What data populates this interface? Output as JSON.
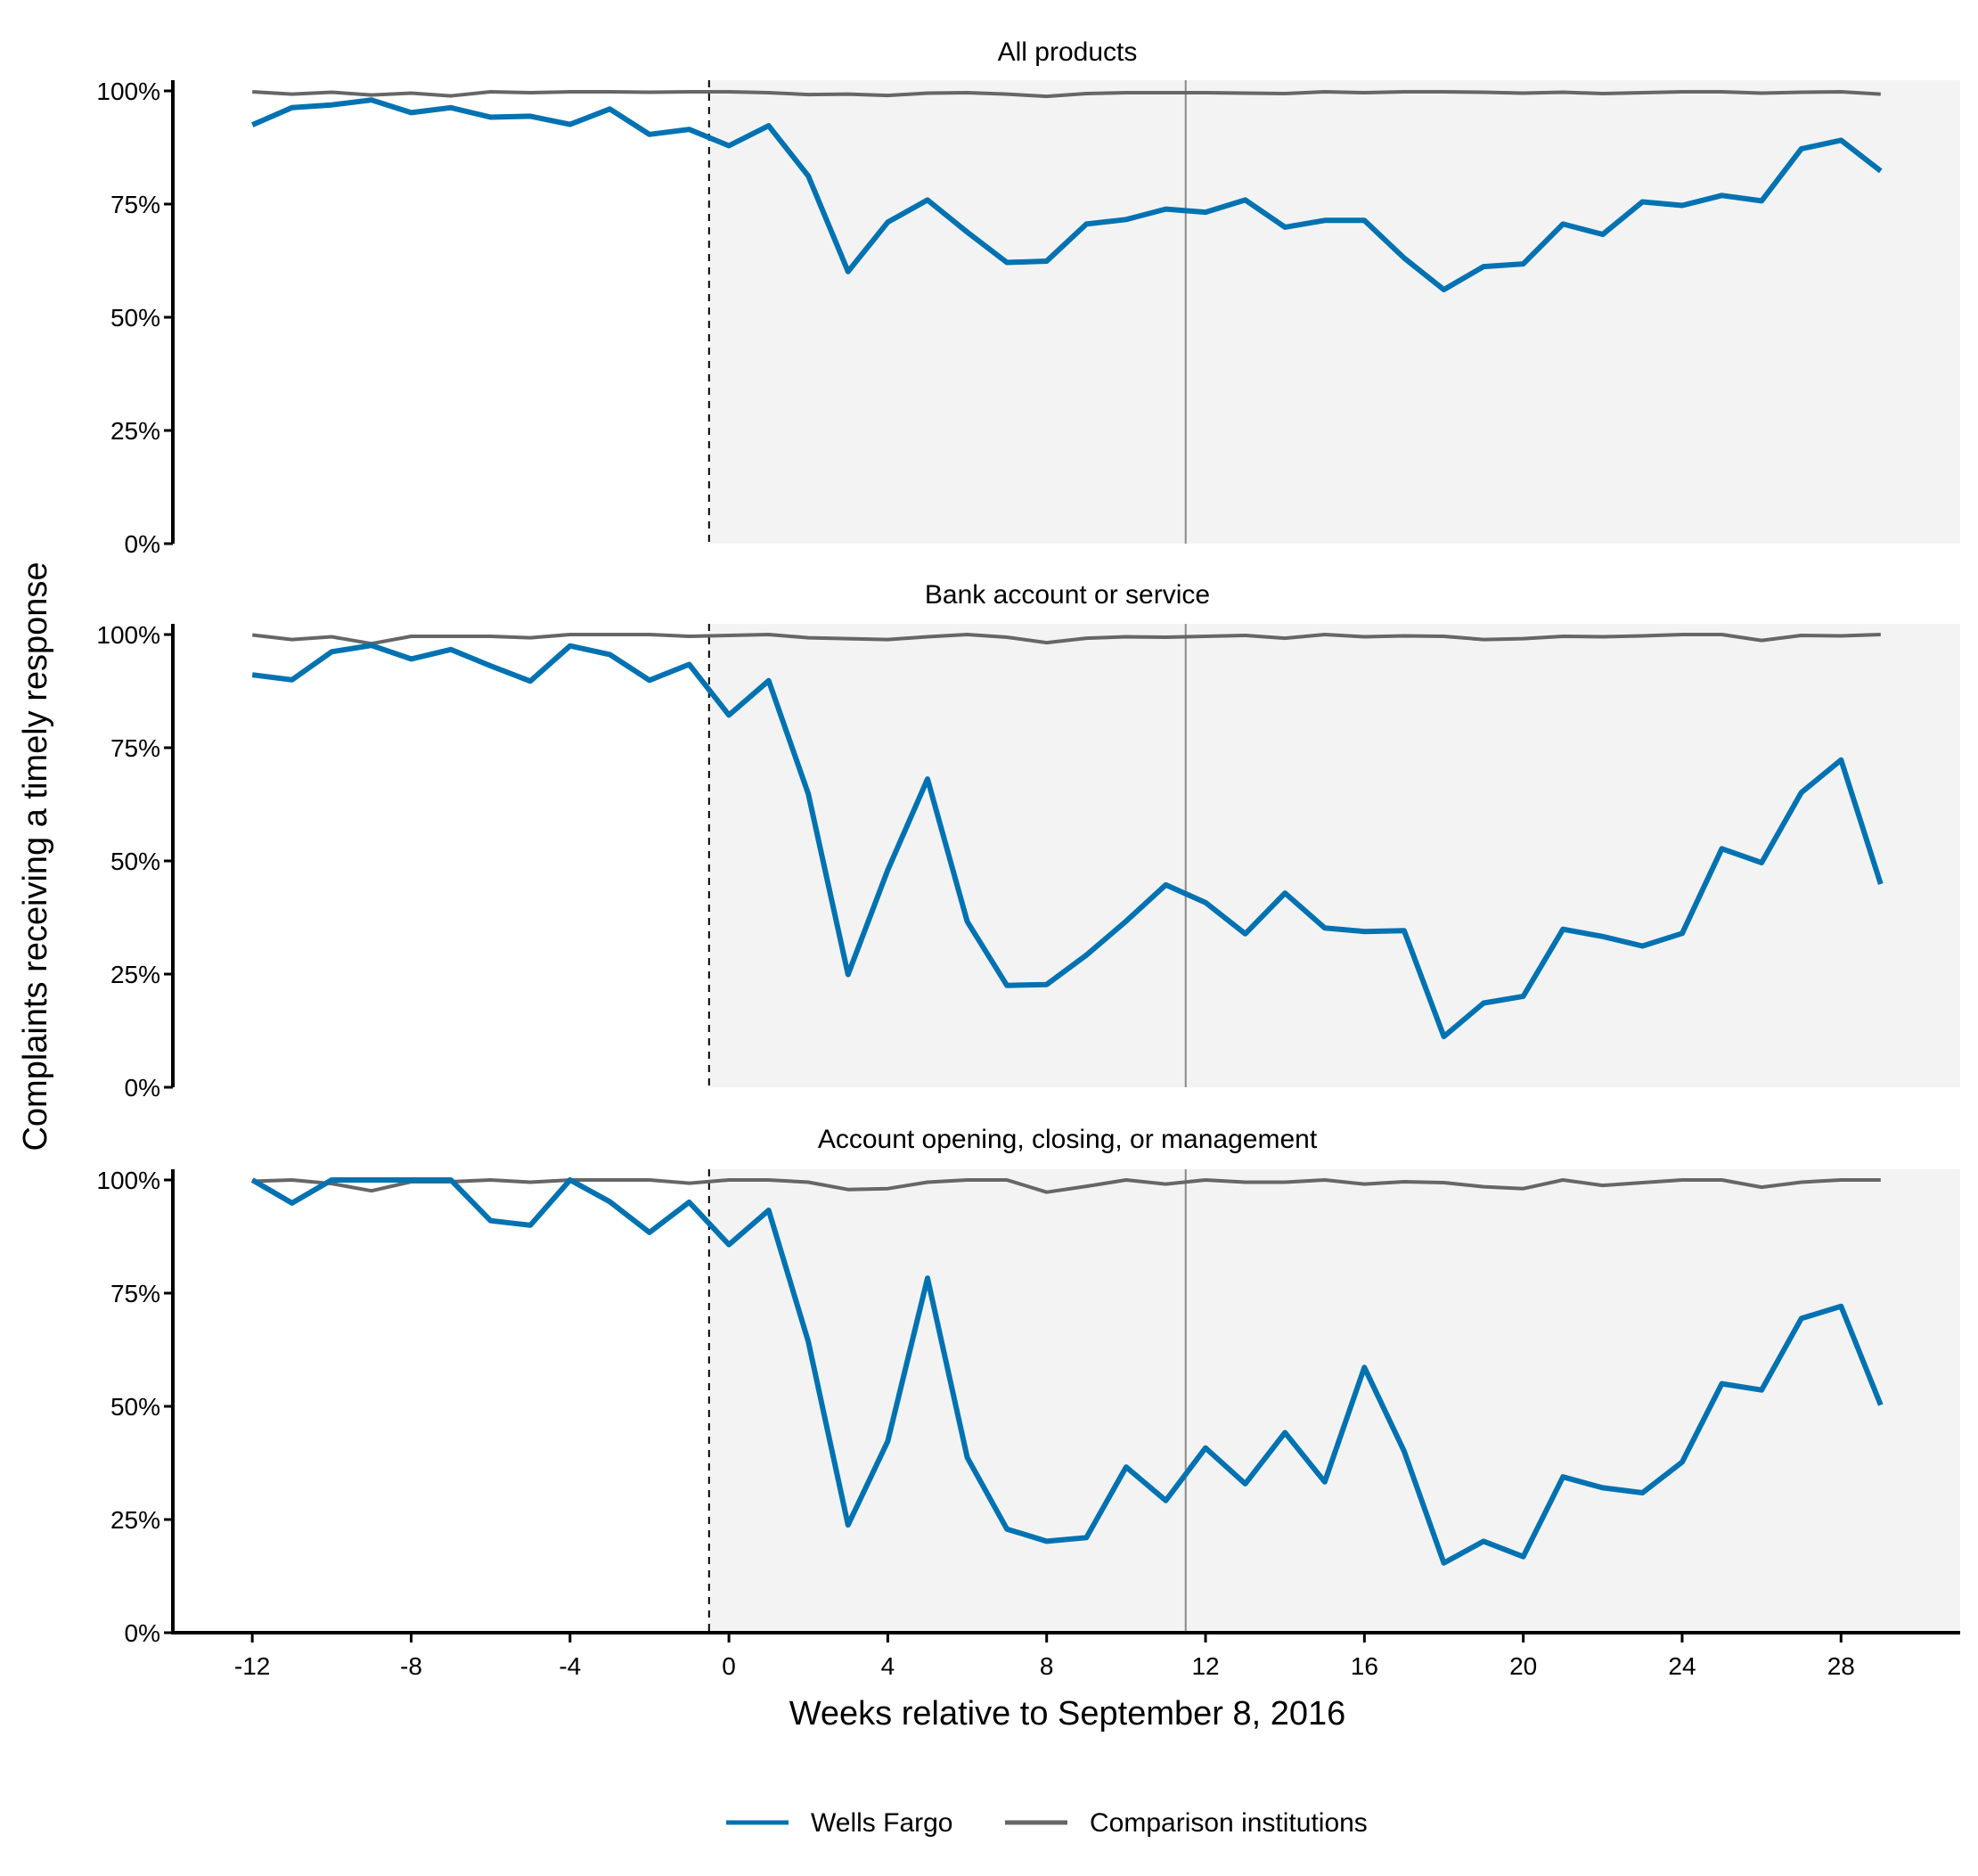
{
  "chart_data": {
    "type": "line",
    "xlabel": "Weeks relative to September 8, 2016",
    "ylabel": "Complaints receiving a timely response",
    "x_ticks": [
      -12,
      -8,
      -4,
      0,
      4,
      8,
      12,
      16,
      20,
      24,
      28
    ],
    "x_tick_labels": [
      "-12",
      "-8",
      "-4",
      "0",
      "4",
      "8",
      "12",
      "16",
      "20",
      "24",
      "28"
    ],
    "xlim": [
      -14,
      31
    ],
    "ylim": [
      0,
      100
    ],
    "y_ticks": [
      0,
      25,
      50,
      75,
      100
    ],
    "y_tick_labels": [
      "0%",
      "25%",
      "50%",
      "75%",
      "100%"
    ],
    "x": [
      -12,
      -11,
      -10,
      -9,
      -8,
      -7,
      -6,
      -5,
      -4,
      -3,
      -2,
      -1,
      0,
      1,
      2,
      3,
      4,
      5,
      6,
      7,
      8,
      9,
      10,
      11,
      12,
      13,
      14,
      15,
      16,
      17,
      18,
      19,
      20,
      21,
      22,
      23,
      24,
      25,
      26,
      27,
      28,
      29
    ],
    "shaded_region": {
      "from": -0.5,
      "to": 31,
      "color": "#f3f3f3"
    },
    "dashed_vline": -0.5,
    "solid_vline": 11.5,
    "grid": false,
    "legend_position": "bottom",
    "legend": [
      {
        "name": "Wells Fargo",
        "color": "#0072b2"
      },
      {
        "name": "Comparison institutions",
        "color": "#666666"
      }
    ],
    "panels": [
      {
        "title": "All products",
        "series": [
          {
            "name": "Wells Fargo",
            "color": "#0072b2",
            "values": [
              92.5,
              96.3,
              96.9,
              98.0,
              95.2,
              96.3,
              94.2,
              94.4,
              92.6,
              96.0,
              90.4,
              91.5,
              87.9,
              92.3,
              81.2,
              60.1,
              71.0,
              75.9,
              68.8,
              62.1,
              62.4,
              70.6,
              71.6,
              73.9,
              73.2,
              75.9,
              69.9,
              71.4,
              71.4,
              63.1,
              56.1,
              61.2,
              61.8,
              70.6,
              68.3,
              75.5,
              74.7,
              76.9,
              75.7,
              87.2,
              89.1,
              82.3
            ]
          },
          {
            "name": "Comparison institutions",
            "color": "#666666",
            "values": [
              99.8,
              99.3,
              99.7,
              99.1,
              99.5,
              98.9,
              99.8,
              99.6,
              99.8,
              99.8,
              99.7,
              99.8,
              99.8,
              99.6,
              99.2,
              99.3,
              99.0,
              99.5,
              99.6,
              99.3,
              98.8,
              99.4,
              99.6,
              99.6,
              99.6,
              99.5,
              99.4,
              99.8,
              99.6,
              99.8,
              99.8,
              99.7,
              99.5,
              99.7,
              99.4,
              99.6,
              99.8,
              99.8,
              99.5,
              99.7,
              99.8,
              99.3
            ]
          }
        ]
      },
      {
        "title": "Bank account or service",
        "series": [
          {
            "name": "Wells Fargo",
            "color": "#0072b2",
            "values": [
              91.1,
              90.0,
              96.2,
              97.6,
              94.6,
              96.7,
              93.1,
              89.7,
              97.5,
              95.6,
              89.9,
              93.4,
              82.2,
              89.8,
              64.8,
              24.9,
              48.0,
              68.1,
              36.6,
              22.5,
              22.7,
              29.2,
              36.7,
              44.7,
              40.8,
              33.9,
              42.9,
              35.2,
              34.4,
              34.6,
              11.2,
              18.6,
              20.1,
              34.9,
              33.3,
              31.2,
              34.0,
              52.7,
              49.6,
              65.1,
              72.3,
              44.9
            ]
          },
          {
            "name": "Comparison institutions",
            "color": "#666666",
            "values": [
              99.9,
              98.9,
              99.5,
              98.0,
              99.6,
              99.6,
              99.6,
              99.3,
              100.0,
              100.0,
              100.0,
              99.6,
              99.8,
              100.0,
              99.3,
              99.1,
              98.9,
              99.5,
              100.0,
              99.4,
              98.2,
              99.2,
              99.5,
              99.4,
              99.6,
              99.8,
              99.2,
              100.0,
              99.5,
              99.7,
              99.6,
              98.9,
              99.1,
              99.6,
              99.5,
              99.7,
              100.0,
              100.0,
              98.7,
              99.8,
              99.7,
              100.0
            ]
          }
        ]
      },
      {
        "title": "Account opening, closing, or management",
        "series": [
          {
            "name": "Wells Fargo",
            "color": "#0072b2",
            "values": [
              100.0,
              94.9,
              100.0,
              100.0,
              100.0,
              100.0,
              91.0,
              90.0,
              100.0,
              95.2,
              88.4,
              95.1,
              85.7,
              93.3,
              64.3,
              23.8,
              42.3,
              78.3,
              38.7,
              22.9,
              20.2,
              21.0,
              36.6,
              29.2,
              40.8,
              32.9,
              44.2,
              33.3,
              58.6,
              40.1,
              15.4,
              20.2,
              16.8,
              34.4,
              32.0,
              30.9,
              37.7,
              55.0,
              53.6,
              69.4,
              72.1,
              50.3
            ]
          },
          {
            "name": "Comparison institutions",
            "color": "#666666",
            "values": [
              99.7,
              100.0,
              99.2,
              97.6,
              99.6,
              99.6,
              100.0,
              99.5,
              100.0,
              100.0,
              100.0,
              99.3,
              100.0,
              100.0,
              99.5,
              97.9,
              98.1,
              99.5,
              100.0,
              100.0,
              97.3,
              98.6,
              100.0,
              99.1,
              100.0,
              99.5,
              99.5,
              100.0,
              99.1,
              99.6,
              99.4,
              98.5,
              98.1,
              100.0,
              98.8,
              99.4,
              100.0,
              100.0,
              98.4,
              99.5,
              100.0,
              100.0
            ]
          }
        ]
      }
    ]
  }
}
